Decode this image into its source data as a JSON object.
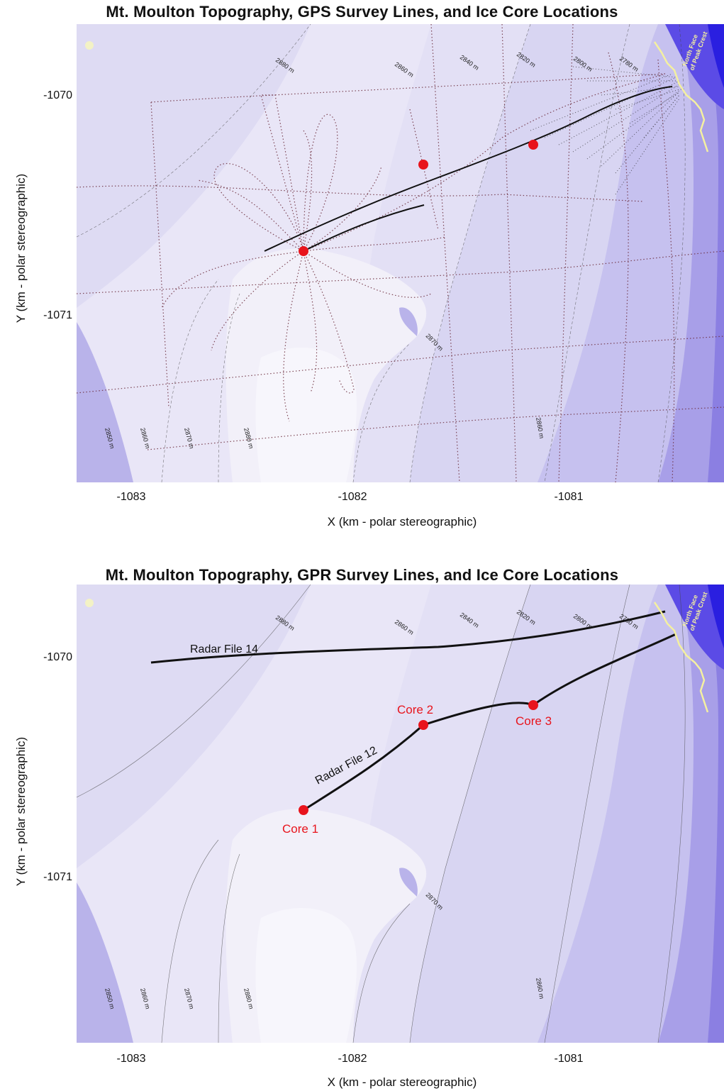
{
  "top": {
    "title": "Mt. Moulton Topography, GPS Survey Lines, and Ice Core Locations",
    "xlabel": "X (km - polar stereographic)",
    "ylabel": "Y (km - polar stereographic)",
    "xticks": [
      "-1083",
      "-1082",
      "-1081"
    ],
    "yticks": [
      "-1070",
      "-1071"
    ]
  },
  "bottom": {
    "title": "Mt. Moulton Topography, GPR Survey Lines, and Ice Core Locations",
    "xlabel": "X (km - polar stereographic)",
    "ylabel": "Y (km - polar stereographic)",
    "xticks": [
      "-1083",
      "-1082",
      "-1081"
    ],
    "yticks": [
      "-1070",
      "-1071"
    ],
    "radar_lines": [
      "Radar File 14",
      "Radar File 12"
    ],
    "cores": [
      "Core 1",
      "Core 2",
      "Core 3"
    ]
  },
  "contour_labels": {
    "top": [
      "2880 m",
      "2860 m",
      "2840 m",
      "2820 m",
      "2800 m",
      "2780 m"
    ],
    "left": [
      "2850 m",
      "2860 m",
      "2870 m",
      "2880 m"
    ],
    "right": [
      "2860 m"
    ],
    "mid": [
      "2870 m"
    ]
  },
  "coast_label": [
    "North Face",
    "of Peak Crest"
  ],
  "colors": {
    "light": "#f1eef8",
    "dark": "#2a1fe0",
    "core": "#e8141c",
    "coast": "#f4f0a0"
  }
}
